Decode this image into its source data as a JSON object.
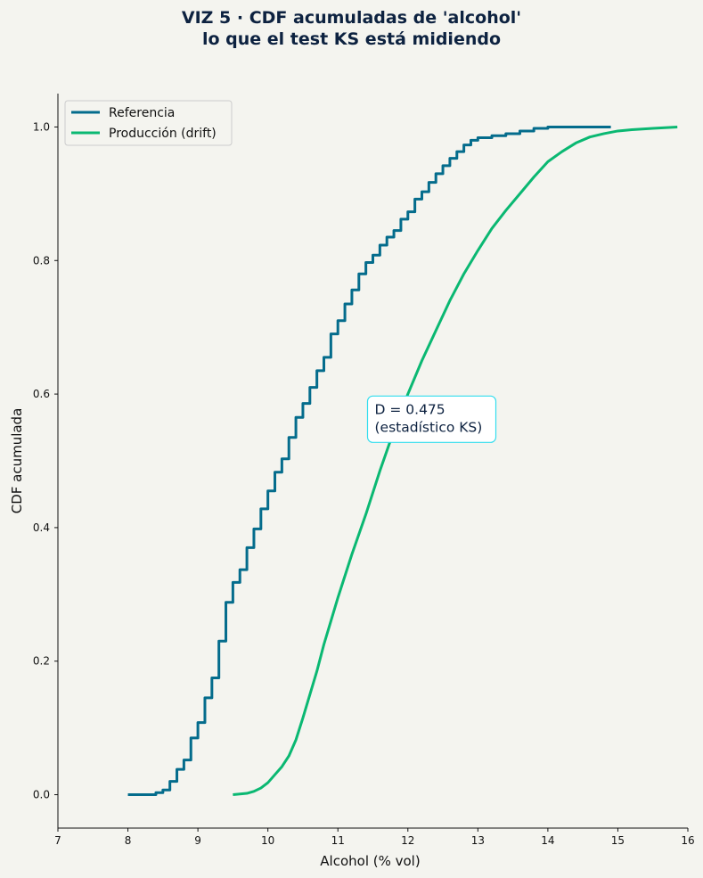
{
  "chart_data": {
    "type": "line",
    "title_lines": [
      "VIZ 5 · CDF acumuladas de 'alcohol'",
      "lo que el test KS está midiendo"
    ],
    "xlabel": "Alcohol (% vol)",
    "ylabel": "CDF acumulada",
    "xlim": [
      7,
      16
    ],
    "ylim": [
      -0.05,
      1.05
    ],
    "xticks": [
      7,
      8,
      9,
      10,
      11,
      12,
      13,
      14,
      15,
      16
    ],
    "yticks": [
      "0.0",
      "0.2",
      "0.4",
      "0.6",
      "0.8",
      "1.0"
    ],
    "ytick_values": [
      0,
      0.2,
      0.4,
      0.6,
      0.8,
      1.0
    ],
    "grid": false,
    "legend_position": "top-left",
    "series": [
      {
        "name": "Referencia",
        "color": "#046c8c",
        "style": "step",
        "points": [
          [
            8.0,
            0.0
          ],
          [
            8.4,
            0.003
          ],
          [
            8.5,
            0.007
          ],
          [
            8.6,
            0.02
          ],
          [
            8.7,
            0.038
          ],
          [
            8.8,
            0.052
          ],
          [
            8.9,
            0.085
          ],
          [
            9.0,
            0.108
          ],
          [
            9.1,
            0.145
          ],
          [
            9.2,
            0.175
          ],
          [
            9.3,
            0.23
          ],
          [
            9.4,
            0.288
          ],
          [
            9.5,
            0.318
          ],
          [
            9.6,
            0.337
          ],
          [
            9.7,
            0.37
          ],
          [
            9.8,
            0.398
          ],
          [
            9.9,
            0.428
          ],
          [
            10.0,
            0.455
          ],
          [
            10.1,
            0.483
          ],
          [
            10.2,
            0.503
          ],
          [
            10.3,
            0.535
          ],
          [
            10.4,
            0.565
          ],
          [
            10.5,
            0.586
          ],
          [
            10.6,
            0.61
          ],
          [
            10.7,
            0.635
          ],
          [
            10.8,
            0.655
          ],
          [
            10.9,
            0.69
          ],
          [
            11.0,
            0.71
          ],
          [
            11.1,
            0.735
          ],
          [
            11.2,
            0.756
          ],
          [
            11.3,
            0.78
          ],
          [
            11.4,
            0.797
          ],
          [
            11.5,
            0.808
          ],
          [
            11.6,
            0.823
          ],
          [
            11.7,
            0.835
          ],
          [
            11.8,
            0.845
          ],
          [
            11.9,
            0.862
          ],
          [
            12.0,
            0.873
          ],
          [
            12.1,
            0.892
          ],
          [
            12.2,
            0.903
          ],
          [
            12.3,
            0.917
          ],
          [
            12.4,
            0.93
          ],
          [
            12.5,
            0.942
          ],
          [
            12.6,
            0.953
          ],
          [
            12.7,
            0.963
          ],
          [
            12.8,
            0.973
          ],
          [
            12.9,
            0.98
          ],
          [
            13.0,
            0.984
          ],
          [
            13.2,
            0.987
          ],
          [
            13.4,
            0.99
          ],
          [
            13.6,
            0.994
          ],
          [
            13.8,
            0.998
          ],
          [
            14.0,
            1.0
          ],
          [
            14.9,
            1.0
          ]
        ]
      },
      {
        "name": "Producción (drift)",
        "color": "#0ab872",
        "style": "line",
        "points": [
          [
            9.5,
            0.0
          ],
          [
            9.7,
            0.002
          ],
          [
            9.8,
            0.005
          ],
          [
            9.9,
            0.01
          ],
          [
            10.0,
            0.018
          ],
          [
            10.1,
            0.03
          ],
          [
            10.2,
            0.042
          ],
          [
            10.3,
            0.058
          ],
          [
            10.4,
            0.082
          ],
          [
            10.5,
            0.115
          ],
          [
            10.6,
            0.15
          ],
          [
            10.7,
            0.185
          ],
          [
            10.8,
            0.225
          ],
          [
            10.9,
            0.26
          ],
          [
            11.0,
            0.295
          ],
          [
            11.2,
            0.36
          ],
          [
            11.4,
            0.42
          ],
          [
            11.6,
            0.485
          ],
          [
            11.8,
            0.545
          ],
          [
            12.0,
            0.6
          ],
          [
            12.2,
            0.65
          ],
          [
            12.4,
            0.695
          ],
          [
            12.6,
            0.74
          ],
          [
            12.8,
            0.78
          ],
          [
            13.0,
            0.815
          ],
          [
            13.2,
            0.848
          ],
          [
            13.4,
            0.875
          ],
          [
            13.6,
            0.9
          ],
          [
            13.8,
            0.925
          ],
          [
            14.0,
            0.948
          ],
          [
            14.2,
            0.963
          ],
          [
            14.4,
            0.976
          ],
          [
            14.6,
            0.985
          ],
          [
            14.8,
            0.99
          ],
          [
            15.0,
            0.994
          ],
          [
            15.2,
            0.996
          ],
          [
            15.5,
            0.998
          ],
          [
            15.85,
            1.0
          ]
        ]
      }
    ],
    "annotation": {
      "lines": [
        "D = 0.475",
        "(estadístico KS)"
      ],
      "x": 11.5,
      "y": 0.565,
      "border_color": "#33ddee"
    }
  }
}
